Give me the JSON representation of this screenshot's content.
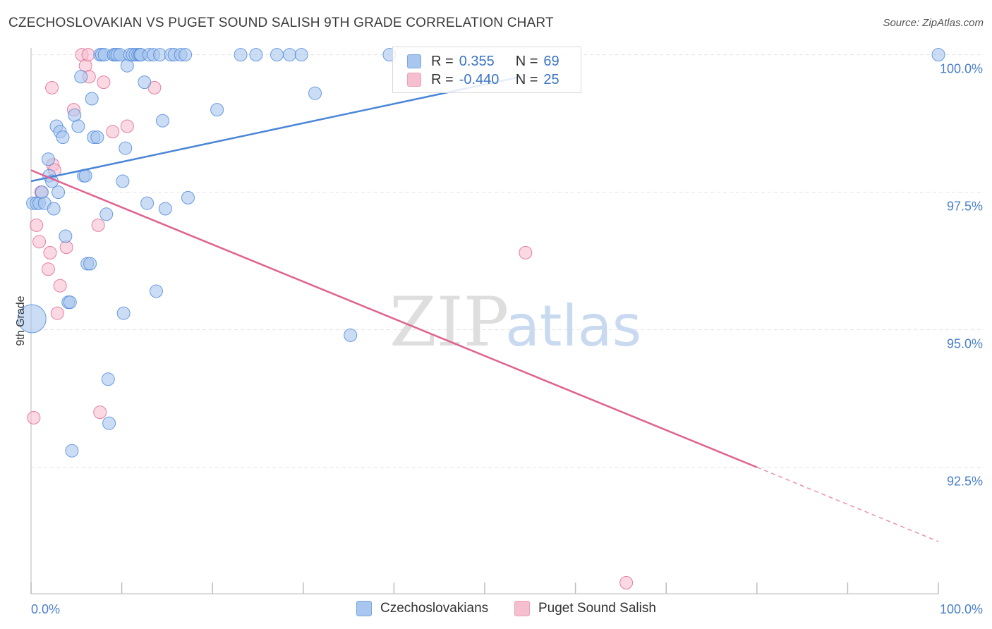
{
  "header": {
    "title": "CZECHOSLOVAKIAN VS PUGET SOUND SALISH 9TH GRADE CORRELATION CHART",
    "source": "Source: ZipAtlas.com"
  },
  "watermark": {
    "zip": "ZIP",
    "atlas": "atlas"
  },
  "legend": {
    "rows": [
      {
        "r_label": "R =",
        "r_value": "0.355",
        "n_label": "N =",
        "n_value": "69",
        "color": "#a9c7ee"
      },
      {
        "r_label": "R =",
        "r_value": "-0.440",
        "n_label": "N =",
        "n_value": "25",
        "color": "#f6bfd0"
      }
    ]
  },
  "bottom_legend": [
    {
      "label": "Czechoslovakians",
      "color": "#a9c7ee"
    },
    {
      "label": "Puget Sound Salish",
      "color": "#f6bfd0"
    }
  ],
  "chart_data": {
    "type": "scatter",
    "title": "CZECHOSLOVAKIAN VS PUGET SOUND SALISH 9TH GRADE CORRELATION CHART",
    "xlabel": "",
    "ylabel": "9th Grade",
    "xlim": [
      0,
      100
    ],
    "ylim": [
      90.2,
      100.2
    ],
    "x_tick_labels": [
      "0.0%",
      "100.0%"
    ],
    "y_ticks": [
      100.0,
      97.5,
      95.0,
      92.5
    ],
    "y_tick_labels": [
      "100.0%",
      "97.5%",
      "95.0%",
      "92.5%"
    ],
    "series": [
      {
        "name": "Czechoslovakians",
        "color": "#4a86d8",
        "fill": "#a9c7ee",
        "trend": {
          "x0": 0,
          "y0": 97.7,
          "x1": 54,
          "y1": 99.6,
          "x1_solid_end": 54,
          "x1_dash_end": 54
        },
        "points": [
          [
            0.1,
            95.2,
            3
          ],
          [
            0.2,
            97.3,
            1
          ],
          [
            0.6,
            97.3,
            1
          ],
          [
            0.9,
            97.3,
            1
          ],
          [
            1.2,
            97.5,
            1
          ],
          [
            1.5,
            97.3,
            1
          ],
          [
            1.9,
            98.1,
            1
          ],
          [
            2.0,
            97.8,
            1
          ],
          [
            2.3,
            97.7,
            1
          ],
          [
            2.5,
            97.2,
            1
          ],
          [
            2.8,
            98.7,
            1
          ],
          [
            3.0,
            97.5,
            1
          ],
          [
            3.2,
            98.6,
            1
          ],
          [
            3.5,
            98.5,
            1
          ],
          [
            3.8,
            96.7,
            1
          ],
          [
            4.1,
            95.5,
            1
          ],
          [
            4.3,
            95.5,
            1
          ],
          [
            4.5,
            92.8,
            1
          ],
          [
            4.8,
            98.9,
            1
          ],
          [
            5.2,
            98.7,
            1
          ],
          [
            5.5,
            99.6,
            1
          ],
          [
            5.8,
            97.8,
            1
          ],
          [
            6.0,
            97.8,
            1
          ],
          [
            6.2,
            96.2,
            1
          ],
          [
            6.5,
            96.2,
            1
          ],
          [
            6.7,
            99.2,
            1
          ],
          [
            6.9,
            98.5,
            1
          ],
          [
            7.3,
            98.5,
            1
          ],
          [
            7.6,
            100.0,
            1
          ],
          [
            7.8,
            100.0,
            1
          ],
          [
            8.1,
            100.0,
            1
          ],
          [
            8.3,
            97.1,
            1
          ],
          [
            8.5,
            94.1,
            1
          ],
          [
            8.6,
            93.3,
            1
          ],
          [
            9.1,
            100.0,
            1
          ],
          [
            9.3,
            100.0,
            1
          ],
          [
            9.5,
            100.0,
            1
          ],
          [
            9.8,
            100.0,
            1
          ],
          [
            10.1,
            97.7,
            1
          ],
          [
            10.2,
            95.3,
            1
          ],
          [
            10.4,
            98.3,
            1
          ],
          [
            10.6,
            99.8,
            1
          ],
          [
            10.9,
            100.0,
            1
          ],
          [
            11.2,
            100.0,
            1
          ],
          [
            11.5,
            100.0,
            1
          ],
          [
            11.8,
            100.0,
            1
          ],
          [
            12.0,
            100.0,
            1
          ],
          [
            12.1,
            100.0,
            1
          ],
          [
            12.5,
            99.5,
            1
          ],
          [
            12.8,
            97.3,
            1
          ],
          [
            13.0,
            100.0,
            1
          ],
          [
            13.5,
            100.0,
            1
          ],
          [
            13.8,
            95.7,
            1
          ],
          [
            14.2,
            100.0,
            1
          ],
          [
            14.5,
            98.8,
            1
          ],
          [
            14.8,
            97.2,
            1
          ],
          [
            15.4,
            100.0,
            1
          ],
          [
            15.8,
            100.0,
            1
          ],
          [
            16.5,
            100.0,
            1
          ],
          [
            17.0,
            100.0,
            1
          ],
          [
            17.3,
            97.4,
            1
          ],
          [
            20.5,
            99.0,
            1
          ],
          [
            23.1,
            100.0,
            1
          ],
          [
            24.8,
            100.0,
            1
          ],
          [
            27.1,
            100.0,
            1
          ],
          [
            28.5,
            100.0,
            1
          ],
          [
            29.8,
            100.0,
            1
          ],
          [
            31.3,
            99.3,
            1
          ],
          [
            35.2,
            94.9,
            1
          ],
          [
            39.5,
            100.0,
            1
          ],
          [
            100.0,
            100.0,
            1
          ]
        ]
      },
      {
        "name": "Puget Sound Salish",
        "color": "#e0638f",
        "fill": "#f6bfd0",
        "trend": {
          "x0": 0,
          "y0": 97.9,
          "x1": 80,
          "y1": 92.5,
          "x1_solid_end": 80,
          "x1_dash_end": 100
        },
        "points": [
          [
            0.3,
            93.4,
            1
          ],
          [
            0.6,
            96.9,
            1
          ],
          [
            0.9,
            96.6,
            1
          ],
          [
            1.1,
            97.5,
            1
          ],
          [
            1.9,
            96.1,
            1
          ],
          [
            2.1,
            96.4,
            1
          ],
          [
            2.3,
            99.4,
            1
          ],
          [
            2.4,
            98.0,
            1
          ],
          [
            2.6,
            97.9,
            1
          ],
          [
            2.9,
            95.3,
            1
          ],
          [
            3.2,
            95.8,
            1
          ],
          [
            3.9,
            96.5,
            1
          ],
          [
            4.7,
            99.0,
            1
          ],
          [
            5.6,
            100.0,
            1
          ],
          [
            6.0,
            99.8,
            1
          ],
          [
            6.3,
            100.0,
            1
          ],
          [
            6.4,
            99.6,
            1
          ],
          [
            7.4,
            96.9,
            1
          ],
          [
            7.6,
            93.5,
            1
          ],
          [
            8.0,
            99.5,
            1
          ],
          [
            9.0,
            98.6,
            1
          ],
          [
            10.6,
            98.7,
            1
          ],
          [
            13.6,
            99.4,
            1
          ],
          [
            54.5,
            96.4,
            1
          ],
          [
            65.6,
            90.4,
            1
          ]
        ]
      }
    ]
  }
}
